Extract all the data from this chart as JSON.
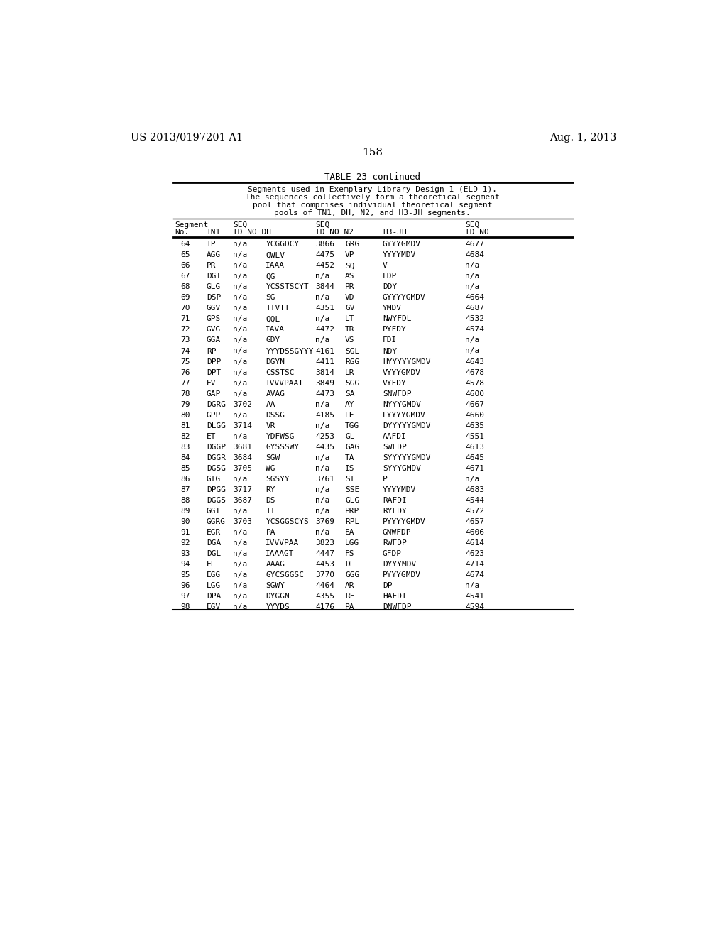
{
  "page_left": "US 2013/0197201 A1",
  "page_right": "Aug. 1, 2013",
  "page_number": "158",
  "table_title": "TABLE 23-continued",
  "table_caption_lines": [
    "Segments used in Exemplary Library Design 1 (ELD-1).",
    "The sequences collectively form a theoretical segment",
    "pool that comprises individual theoretical segment",
    "pools of TN1, DH, N2, and H3-JH segments."
  ],
  "rows": [
    [
      "64",
      "TP",
      "n/a",
      "YCGGDCY",
      "3866",
      "GRG",
      "GYYYGMDV",
      "4677"
    ],
    [
      "65",
      "AGG",
      "n/a",
      "QWLV",
      "4475",
      "VP",
      "YYYYMDV",
      "4684"
    ],
    [
      "66",
      "PR",
      "n/a",
      "IAAA",
      "4452",
      "SQ",
      "V",
      "n/a"
    ],
    [
      "67",
      "DGT",
      "n/a",
      "QG",
      "n/a",
      "AS",
      "FDP",
      "n/a"
    ],
    [
      "68",
      "GLG",
      "n/a",
      "YCSSTSCYT",
      "3844",
      "PR",
      "DDY",
      "n/a"
    ],
    [
      "69",
      "DSP",
      "n/a",
      "SG",
      "n/a",
      "VD",
      "GYYYYGMDV",
      "4664"
    ],
    [
      "70",
      "GGV",
      "n/a",
      "TTVTT",
      "4351",
      "GV",
      "YMDV",
      "4687"
    ],
    [
      "71",
      "GPS",
      "n/a",
      "QQL",
      "n/a",
      "LT",
      "NWYFDL",
      "4532"
    ],
    [
      "72",
      "GVG",
      "n/a",
      "IAVA",
      "4472",
      "TR",
      "PYFDY",
      "4574"
    ],
    [
      "73",
      "GGA",
      "n/a",
      "GDY",
      "n/a",
      "VS",
      "FDI",
      "n/a"
    ],
    [
      "74",
      "RP",
      "n/a",
      "YYYDSSGYYY",
      "4161",
      "SGL",
      "NDY",
      "n/a"
    ],
    [
      "75",
      "DPP",
      "n/a",
      "DGYN",
      "4411",
      "RGG",
      "HYYYYYGMDV",
      "4643"
    ],
    [
      "76",
      "DPT",
      "n/a",
      "CSSTSC",
      "3814",
      "LR",
      "VYYYGMDV",
      "4678"
    ],
    [
      "77",
      "EV",
      "n/a",
      "IVVVPAAI",
      "3849",
      "SGG",
      "VYFDY",
      "4578"
    ],
    [
      "78",
      "GAP",
      "n/a",
      "AVAG",
      "4473",
      "SA",
      "SNWFDP",
      "4600"
    ],
    [
      "79",
      "DGRG",
      "3702",
      "AA",
      "n/a",
      "AY",
      "NYYYGMDV",
      "4667"
    ],
    [
      "80",
      "GPP",
      "n/a",
      "DSSG",
      "4185",
      "LE",
      "LYYYYGMDV",
      "4660"
    ],
    [
      "81",
      "DLGG",
      "3714",
      "VR",
      "n/a",
      "TGG",
      "DYYYYYGMDV",
      "4635"
    ],
    [
      "82",
      "ET",
      "n/a",
      "YDFWSG",
      "4253",
      "GL",
      "AAFDI",
      "4551"
    ],
    [
      "83",
      "DGGP",
      "3681",
      "GYSSSWY",
      "4435",
      "GAG",
      "SWFDP",
      "4613"
    ],
    [
      "84",
      "DGGR",
      "3684",
      "SGW",
      "n/a",
      "TA",
      "SYYYYYGMDV",
      "4645"
    ],
    [
      "85",
      "DGSG",
      "3705",
      "WG",
      "n/a",
      "IS",
      "SYYYGMDV",
      "4671"
    ],
    [
      "86",
      "GTG",
      "n/a",
      "SGSYY",
      "3761",
      "ST",
      "P",
      "n/a"
    ],
    [
      "87",
      "DPGG",
      "3717",
      "RY",
      "n/a",
      "SSE",
      "YYYYMDV",
      "4683"
    ],
    [
      "88",
      "DGGS",
      "3687",
      "DS",
      "n/a",
      "GLG",
      "RAFDI",
      "4544"
    ],
    [
      "89",
      "GGT",
      "n/a",
      "TT",
      "n/a",
      "PRP",
      "RYFDY",
      "4572"
    ],
    [
      "90",
      "GGRG",
      "3703",
      "YCSGGSCYS",
      "3769",
      "RPL",
      "PYYYYGMDV",
      "4657"
    ],
    [
      "91",
      "EGR",
      "n/a",
      "PA",
      "n/a",
      "EA",
      "GNWFDP",
      "4606"
    ],
    [
      "92",
      "DGA",
      "n/a",
      "IVVVPAA",
      "3823",
      "LGG",
      "RWFDP",
      "4614"
    ],
    [
      "93",
      "DGL",
      "n/a",
      "IAAAGT",
      "4447",
      "FS",
      "GFDP",
      "4623"
    ],
    [
      "94",
      "EL",
      "n/a",
      "AAAG",
      "4453",
      "DL",
      "DYYYMDV",
      "4714"
    ],
    [
      "95",
      "EGG",
      "n/a",
      "GYCSGGSC",
      "3770",
      "GGG",
      "PYYYGMDV",
      "4674"
    ],
    [
      "96",
      "LGG",
      "n/a",
      "SGWY",
      "4464",
      "AR",
      "DP",
      "n/a"
    ],
    [
      "97",
      "DPA",
      "n/a",
      "DYGGN",
      "4355",
      "RE",
      "HAFDI",
      "4541"
    ],
    [
      "98",
      "EGV",
      "n/a",
      "YYYDS",
      "4176",
      "PA",
      "DNWFDP",
      "4594"
    ]
  ],
  "bg_color": "#ffffff",
  "text_color": "#000000"
}
